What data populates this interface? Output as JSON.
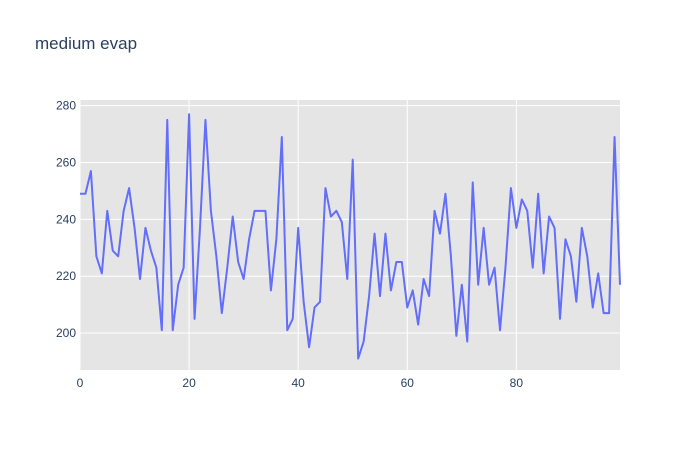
{
  "chart_data": {
    "type": "line",
    "title": "medium evap",
    "xlabel": "",
    "ylabel": "",
    "xlim": [
      0,
      99
    ],
    "ylim": [
      187,
      282
    ],
    "xticks": [
      0,
      20,
      40,
      60,
      80
    ],
    "yticks": [
      200,
      220,
      240,
      260,
      280
    ],
    "grid": true,
    "legend": "none",
    "colors": {
      "line": "#636efa",
      "plot_bg": "#e5e5e5",
      "grid": "#ffffff",
      "text": "#2a3f5f"
    },
    "series": [
      {
        "x": [
          0,
          1,
          2,
          3,
          4,
          5,
          6,
          7,
          8,
          9,
          10,
          11,
          12,
          13,
          14,
          15,
          16,
          17,
          18,
          19,
          20,
          21,
          22,
          23,
          24,
          25,
          26,
          27,
          28,
          29,
          30,
          31,
          32,
          33,
          34,
          35,
          36,
          37,
          38,
          39,
          40,
          41,
          42,
          43,
          44,
          45,
          46,
          47,
          48,
          49,
          50,
          51,
          52,
          53,
          54,
          55,
          56,
          57,
          58,
          59,
          60,
          61,
          62,
          63,
          64,
          65,
          66,
          67,
          68,
          69,
          70,
          71,
          72,
          73,
          74,
          75,
          76,
          77,
          78,
          79,
          80,
          81,
          82,
          83,
          84,
          85,
          86,
          87,
          88,
          89,
          90,
          91,
          92,
          93,
          94,
          95,
          96,
          97,
          98,
          99
        ],
        "values": [
          249,
          249,
          257,
          227,
          221,
          243,
          229,
          227,
          243,
          251,
          237,
          219,
          237,
          229,
          223,
          201,
          275,
          201,
          217,
          223,
          277,
          205,
          237,
          275,
          243,
          227,
          207,
          223,
          241,
          225,
          219,
          233,
          243,
          243,
          243,
          215,
          233,
          269,
          201,
          205,
          237,
          211,
          195,
          209,
          211,
          251,
          241,
          243,
          239,
          219,
          261,
          191,
          197,
          213,
          235,
          213,
          235,
          215,
          225,
          225,
          209,
          215,
          203,
          219,
          213,
          243,
          235,
          249,
          227,
          199,
          217,
          197,
          253,
          217,
          237,
          217,
          223,
          201,
          223,
          251,
          237,
          247,
          243,
          223,
          249,
          221,
          241,
          237,
          205,
          233,
          227,
          211,
          237,
          227,
          209,
          221,
          207,
          207,
          269,
          217
        ]
      }
    ]
  }
}
